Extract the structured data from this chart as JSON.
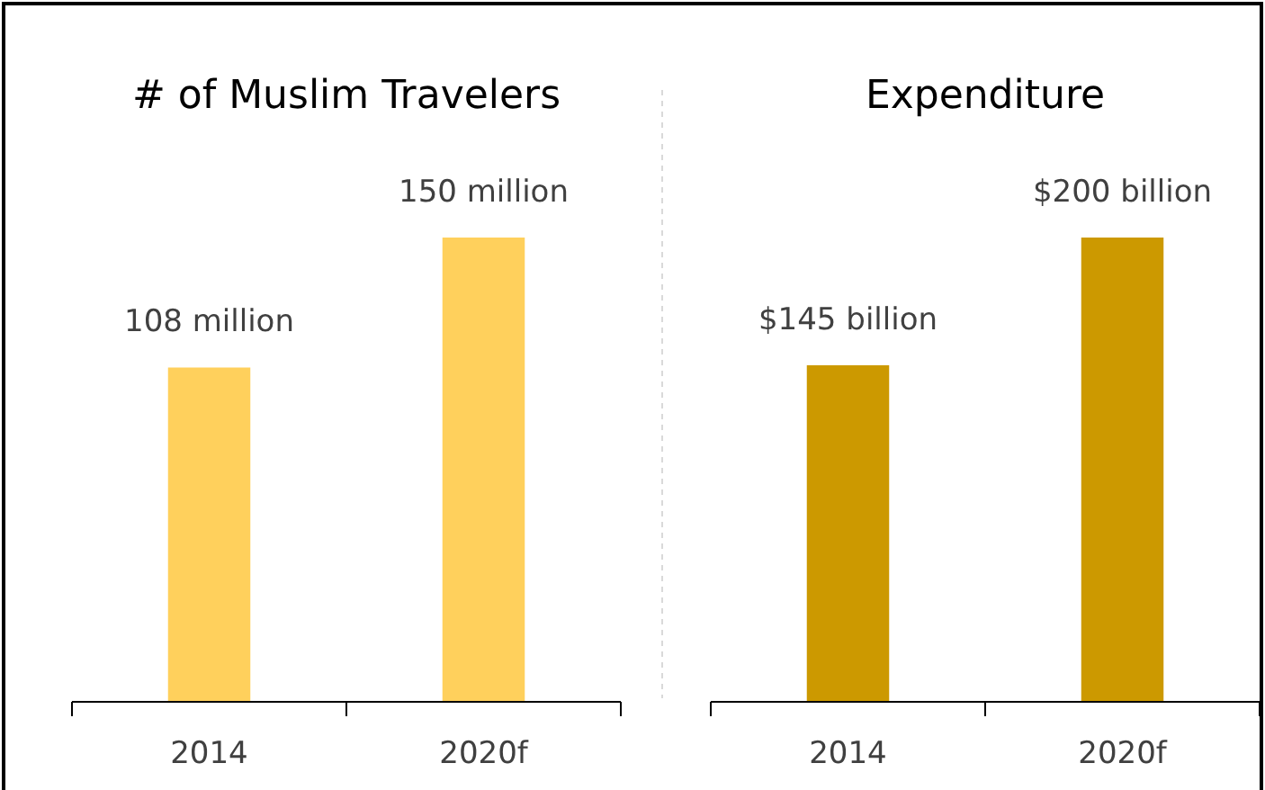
{
  "chart_data": [
    {
      "type": "bar",
      "title": "# of Muslim Travelers",
      "categories": [
        "2014",
        "2020f"
      ],
      "values": [
        108,
        150
      ],
      "value_labels": [
        "108 million",
        "150 million"
      ],
      "color": "#ffd05c"
    },
    {
      "type": "bar",
      "title": "Expenditure",
      "categories": [
        "2014",
        "2020f"
      ],
      "values": [
        145,
        200
      ],
      "value_labels": [
        "$145 billion",
        "$200 billion"
      ],
      "color": "#cc9900"
    }
  ]
}
